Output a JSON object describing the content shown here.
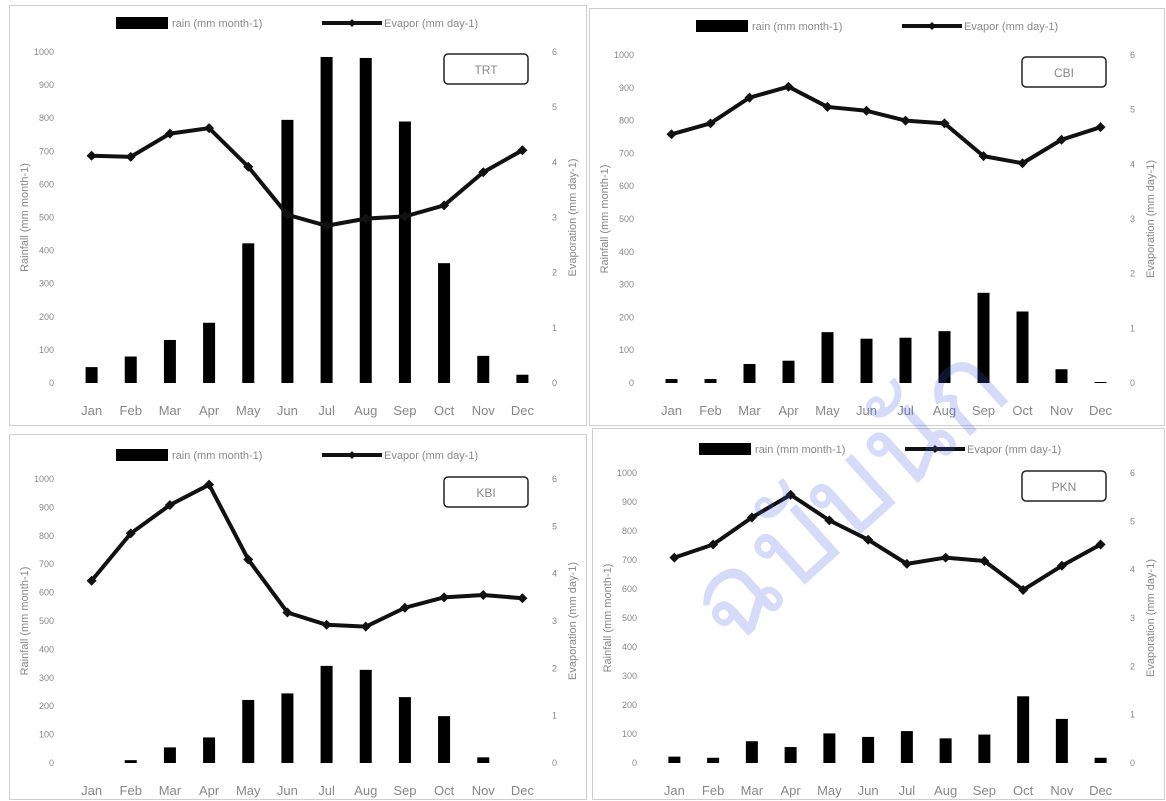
{
  "legend": {
    "rain": "rain (mm month-1)",
    "evap": "Evapor (mm day-1)"
  },
  "watermark": "ฉบับนัก",
  "colors": {
    "bar": "#000000",
    "line": "#111111",
    "text": "#888888",
    "border": "#cfcfcf",
    "watermark": "#5a6fe6"
  },
  "chart_data": [
    {
      "type": "bar+line",
      "station": "TRT",
      "categories": [
        "Jan",
        "Feb",
        "Mar",
        "Apr",
        "May",
        "Jun",
        "Jul",
        "Aug",
        "Sep",
        "Oct",
        "Nov",
        "Dec"
      ],
      "ylabel": "Rainfall (mm month-1)",
      "y2label": "Evaporation (mm day-1)",
      "ylim": [
        0,
        1000
      ],
      "y2lim": [
        0,
        6
      ],
      "yticks": [
        "0",
        "100",
        "200",
        "300",
        "400",
        "500",
        "600",
        "700",
        "800",
        "900",
        "1000"
      ],
      "y2ticks": [
        "0",
        "1",
        "2",
        "3",
        "4",
        "5",
        "6"
      ],
      "series": [
        {
          "name": "rain (mm month-1)",
          "type": "bar",
          "values": [
            48,
            80,
            130,
            182,
            422,
            795,
            985,
            982,
            790,
            362,
            82,
            25
          ]
        },
        {
          "name": "Evapor (mm day-1)",
          "type": "line",
          "values": [
            4.12,
            4.1,
            4.52,
            4.62,
            3.92,
            3.05,
            2.85,
            2.98,
            3.02,
            3.22,
            3.82,
            4.22
          ]
        }
      ]
    },
    {
      "type": "bar+line",
      "station": "CBI",
      "categories": [
        "Jan",
        "Feb",
        "Mar",
        "Apr",
        "May",
        "Jun",
        "Jul",
        "Aug",
        "Sep",
        "Oct",
        "Nov",
        "Dec"
      ],
      "ylabel": "Rainfall (mm month-1)",
      "y2label": "Evaporation (mm day-1)",
      "ylim": [
        0,
        1000
      ],
      "y2lim": [
        0,
        6
      ],
      "yticks": [
        "0",
        "100",
        "200",
        "300",
        "400",
        "500",
        "600",
        "700",
        "800",
        "900",
        "1000"
      ],
      "y2ticks": [
        "0",
        "1",
        "2",
        "3",
        "4",
        "5",
        "6"
      ],
      "series": [
        {
          "name": "rain (mm month-1)",
          "type": "bar",
          "values": [
            12,
            12,
            58,
            68,
            155,
            135,
            138,
            158,
            275,
            218,
            42,
            3
          ]
        },
        {
          "name": "Evapor (mm day-1)",
          "type": "line",
          "values": [
            4.55,
            4.75,
            5.22,
            5.42,
            5.05,
            4.98,
            4.8,
            4.75,
            4.15,
            4.02,
            4.45,
            4.68
          ]
        }
      ]
    },
    {
      "type": "bar+line",
      "station": "KBI",
      "categories": [
        "Jan",
        "Feb",
        "Mar",
        "Apr",
        "May",
        "Jun",
        "Jul",
        "Aug",
        "Sep",
        "Oct",
        "Nov",
        "Dec"
      ],
      "ylabel": "Rainfall (mm month-1)",
      "y2label": "Evaporation (mm day-1)",
      "ylim": [
        0,
        1000
      ],
      "y2lim": [
        0,
        6
      ],
      "yticks": [
        "0",
        "100",
        "200",
        "300",
        "400",
        "500",
        "600",
        "700",
        "800",
        "900",
        "1000"
      ],
      "y2ticks": [
        "0",
        "1",
        "2",
        "3",
        "4",
        "5",
        "6"
      ],
      "series": [
        {
          "name": "rain (mm month-1)",
          "type": "bar",
          "values": [
            0,
            10,
            55,
            90,
            222,
            245,
            342,
            328,
            232,
            165,
            20,
            0
          ]
        },
        {
          "name": "Evapor (mm day-1)",
          "type": "line",
          "values": [
            3.85,
            4.85,
            5.45,
            5.88,
            4.3,
            3.18,
            2.92,
            2.88,
            3.28,
            3.5,
            3.55,
            3.48
          ]
        }
      ]
    },
    {
      "type": "bar+line",
      "station": "PKN",
      "categories": [
        "Jan",
        "Feb",
        "Mar",
        "Apr",
        "May",
        "Jun",
        "Jul",
        "Aug",
        "Sep",
        "Oct",
        "Nov",
        "Dec"
      ],
      "ylabel": "Rainfall (mm month-1)",
      "y2label": "Evaporation (mm day-1)",
      "ylim": [
        0,
        1000
      ],
      "y2lim": [
        0,
        6
      ],
      "yticks": [
        "0",
        "100",
        "200",
        "300",
        "400",
        "500",
        "600",
        "700",
        "800",
        "900",
        "1000"
      ],
      "y2ticks": [
        "0",
        "1",
        "2",
        "3",
        "4",
        "5",
        "6"
      ],
      "series": [
        {
          "name": "rain (mm month-1)",
          "type": "bar",
          "values": [
            22,
            18,
            75,
            55,
            102,
            90,
            110,
            85,
            98,
            230,
            152,
            18
          ]
        },
        {
          "name": "Evapor (mm day-1)",
          "type": "line",
          "values": [
            4.25,
            4.52,
            5.08,
            5.55,
            5.02,
            4.62,
            4.12,
            4.25,
            4.18,
            3.58,
            4.08,
            4.52
          ]
        }
      ]
    }
  ]
}
